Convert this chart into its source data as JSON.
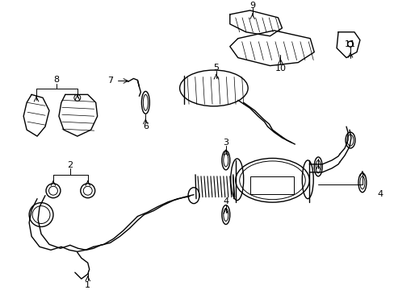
{
  "background_color": "#ffffff",
  "line_color": "#000000",
  "lw": 1.0,
  "fig_width": 4.89,
  "fig_height": 3.6,
  "dpi": 100
}
